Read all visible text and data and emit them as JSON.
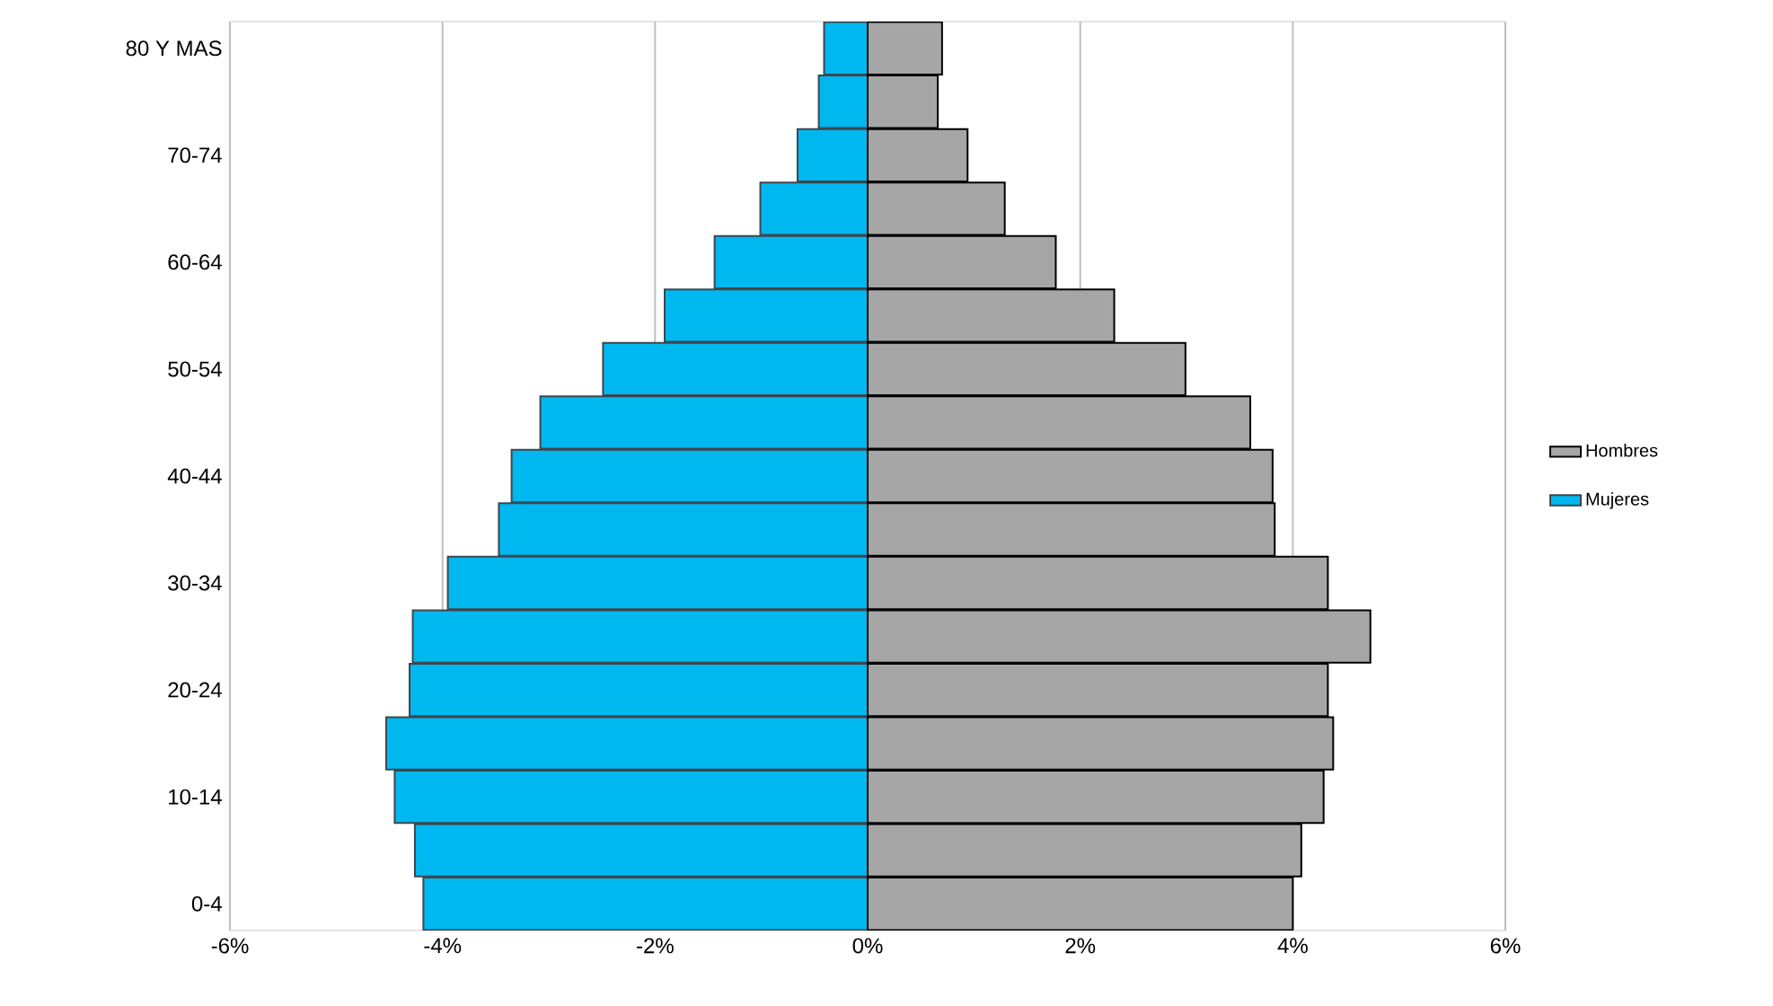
{
  "chart_data": {
    "type": "bar",
    "orientation": "horizontal",
    "categories": [
      "80 Y MAS",
      null,
      "70-74",
      null,
      "60-64",
      null,
      "50-54",
      null,
      "40-44",
      null,
      "30-34",
      null,
      "20-24",
      null,
      "10-14",
      null,
      "0-4"
    ],
    "series": [
      {
        "name": "Hombres",
        "color": "#a6a6a6",
        "values": [
          0.7,
          0.66,
          0.94,
          1.29,
          1.77,
          2.32,
          2.99,
          3.6,
          3.81,
          3.83,
          4.33,
          4.73,
          4.33,
          4.38,
          4.29,
          4.08,
          4.0
        ]
      },
      {
        "name": "Mujeres",
        "color": "#00b8f0",
        "values": [
          -0.41,
          -0.46,
          -0.66,
          -1.01,
          -1.44,
          -1.91,
          -2.49,
          -3.08,
          -3.35,
          -3.47,
          -3.95,
          -4.28,
          -4.31,
          -4.53,
          -4.45,
          -4.26,
          -4.18
        ]
      }
    ],
    "xlim": [
      -6,
      6
    ],
    "xticks": [
      {
        "value": -6,
        "label": "-6%"
      },
      {
        "value": -4,
        "label": "-4%"
      },
      {
        "value": -2,
        "label": "-2%"
      },
      {
        "value": 0,
        "label": "0%"
      },
      {
        "value": 2,
        "label": "2%"
      },
      {
        "value": 4,
        "label": "4%"
      },
      {
        "value": 6,
        "label": "6%"
      }
    ],
    "stacked": true,
    "grid": "x",
    "legend": "right"
  }
}
